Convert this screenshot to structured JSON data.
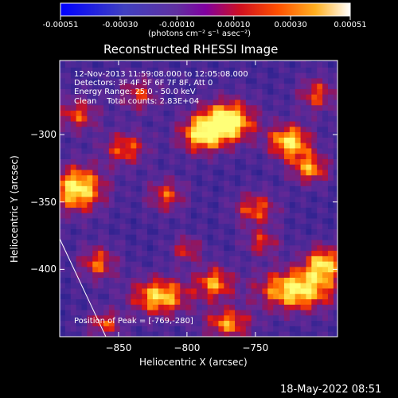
{
  "chart_data": {
    "type": "heatmap",
    "title": "Reconstructed RHESSI Image",
    "xlabel": "Heliocentric X (arcsec)",
    "ylabel": "Heliocentric Y (arcsec)",
    "xlim": [
      -893,
      -690
    ],
    "ylim": [
      -450,
      -245
    ],
    "x_ticks": [
      -850,
      -800,
      -750
    ],
    "y_ticks": [
      -300,
      -350,
      -400
    ],
    "colorbar": {
      "range": [
        -0.00051,
        0.00051
      ],
      "tick_labels": [
        "-0.00051",
        "-0.00030",
        "-0.00010",
        "0.00010",
        "0.00030",
        "0.00051"
      ],
      "tick_values": [
        -0.00051,
        -0.0003,
        -0.0001,
        0.0001,
        0.0003,
        0.00051
      ],
      "units_label": "(photons cm⁻² s⁻¹ asec⁻²)"
    },
    "peak": {
      "x": -769,
      "y": -280
    },
    "colors": {
      "background": "#000000",
      "text": "#ffffff",
      "map_base": "#3b1770",
      "map_hot": "#ffff40"
    }
  },
  "annotations": {
    "time_range": "12-Nov-2013 11:59:08.000 to 12:05:08.000",
    "detectors": "Detectors: 3F 4F 5F 6F 7F 8F, Att 0",
    "energy": "Energy Range: 25.0 - 50.0 keV",
    "clean_total": "Clean    Total counts: 2.83E+04",
    "peak_label": "Position of Peak = [-769,-280]"
  },
  "footer": {
    "timestamp": "18-May-2022 08:51"
  }
}
